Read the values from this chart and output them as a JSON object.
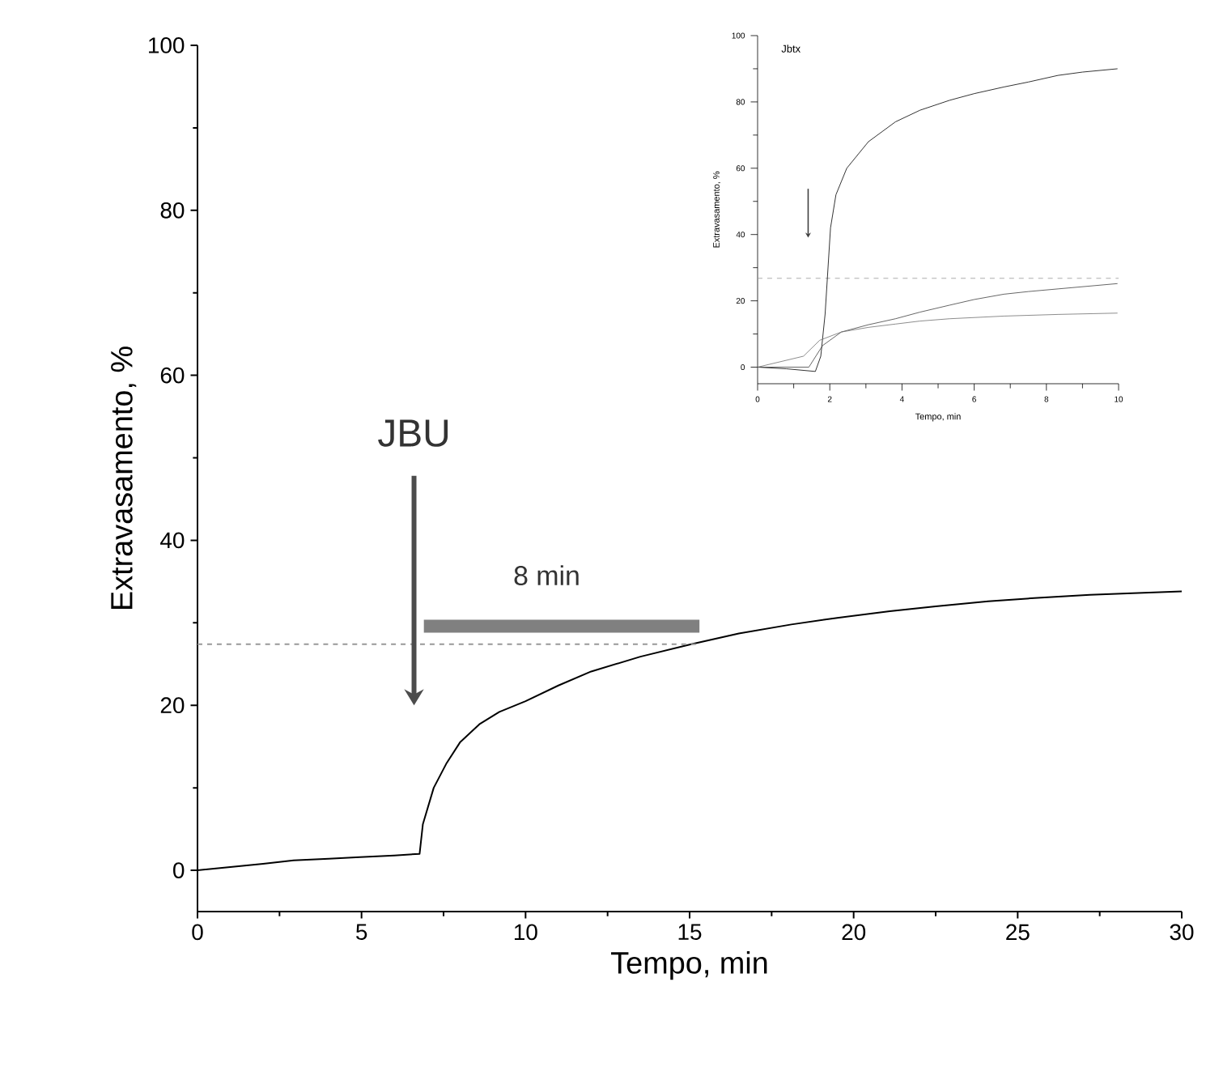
{
  "chart_data": [
    {
      "type": "line",
      "xlabel": "Tempo, min",
      "ylabel": "Extravasamento, %",
      "xlim": [
        0,
        30
      ],
      "ylim": [
        -5,
        100
      ],
      "xticks": [
        0,
        5,
        10,
        15,
        20,
        25,
        30
      ],
      "yticks": [
        0,
        20,
        40,
        60,
        80,
        100
      ],
      "series": [
        {
          "color": "#000000",
          "line_style": "solid",
          "x": [
            0,
            1,
            2,
            2.93,
            4,
            4.95,
            6,
            6.77,
            6.87,
            7.2,
            7.58,
            8,
            8.59,
            9.2,
            10,
            11,
            12,
            13.5,
            15.05,
            16.5,
            18.1,
            19.5,
            21.1,
            22.5,
            24.1,
            25.5,
            27.2,
            28.5,
            30
          ],
          "values": [
            0,
            0.4,
            0.8,
            1.2,
            1.4,
            1.6,
            1.8,
            2.0,
            5.6,
            10,
            12.9,
            15.5,
            17.7,
            19.2,
            20.5,
            22.4,
            24.1,
            25.9,
            27.4,
            28.7,
            29.8,
            30.6,
            31.4,
            32.0,
            32.6,
            33.0,
            33.4,
            33.6,
            33.8
          ]
        },
        {
          "color": "#999999",
          "line_style": "dashed",
          "x": [
            0,
            15.3
          ],
          "values": [
            27.4,
            27.4
          ]
        },
        {
          "color": "#808080",
          "line_style": "solid",
          "x": [
            6.9,
            15.3
          ],
          "values": [
            29.6,
            29.6
          ]
        }
      ],
      "annotations": [
        "JBU",
        "8 min"
      ]
    },
    {
      "type": "line",
      "xlabel": "Tempo, min",
      "ylabel": "Extravasamento, %",
      "xlim": [
        0,
        10
      ],
      "ylim": [
        -5,
        100
      ],
      "xticks": [
        0,
        2,
        4,
        6,
        8,
        10
      ],
      "yticks": [
        0,
        20,
        40,
        60,
        80,
        100
      ],
      "series": [
        {
          "color": "#000000",
          "line_style": "solid",
          "x": [
            0,
            0.8,
            1.6,
            1.75,
            1.87,
            2.02,
            2.17,
            2.47,
            3.07,
            3.82,
            4.5,
            5.32,
            6,
            6.82,
            7.5,
            8.32,
            9,
            9.97
          ],
          "values": [
            0,
            -0.5,
            -1.3,
            3.3,
            16,
            42,
            52,
            60,
            68,
            74,
            77.5,
            80.5,
            82.5,
            84.5,
            86,
            88,
            89,
            90
          ]
        },
        {
          "color": "#404040",
          "line_style": "solid",
          "x": [
            0,
            1.42,
            1.8,
            2.32,
            3.07,
            3.82,
            4.5,
            5.32,
            6,
            6.82,
            7.5,
            8.32,
            9.97
          ],
          "values": [
            0,
            0,
            6.5,
            10.6,
            12.8,
            14.6,
            16.6,
            18.7,
            20.4,
            22,
            22.8,
            23.6,
            25.2
          ]
        },
        {
          "color": "#707070",
          "line_style": "solid",
          "x": [
            0,
            1.27,
            1.72,
            2.32,
            3.07,
            3.82,
            4.5,
            5.32,
            6.82,
            8.32,
            9.97
          ],
          "values": [
            0,
            3.3,
            8.1,
            10.6,
            12,
            13,
            13.9,
            14.6,
            15.4,
            15.9,
            16.3
          ]
        }
      ],
      "ref_lines": [
        {
          "axis": "y",
          "value": 26.8,
          "color": "#999999",
          "line_style": "dashed"
        }
      ],
      "annotations": [
        "Jbtx"
      ]
    }
  ]
}
